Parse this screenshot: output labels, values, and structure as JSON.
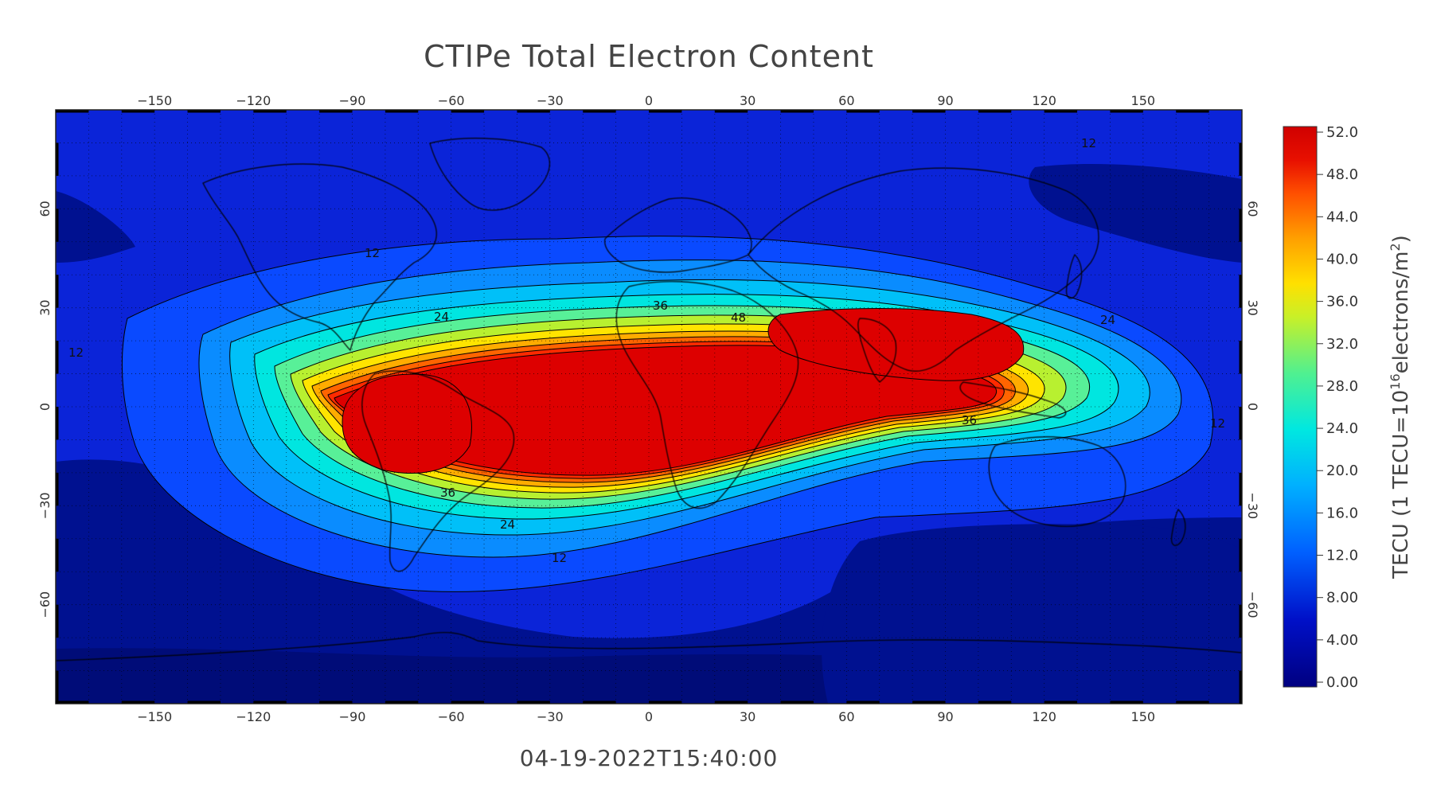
{
  "title": "CTIPe Total Electron Content",
  "timestamp": "04-19-2022T15:40:00",
  "map": {
    "lon_ticks": [
      -150,
      -120,
      -90,
      -60,
      -30,
      0,
      30,
      60,
      90,
      120,
      150
    ],
    "lat_ticks": [
      60,
      30,
      0,
      -30,
      -60
    ],
    "lon_range": [
      -180,
      180
    ],
    "lat_range": [
      -90,
      90
    ],
    "grid": "dotted",
    "contour_labels": [
      "12",
      "24",
      "36",
      "48",
      "36",
      "24",
      "12",
      "12",
      "12",
      "36",
      "24",
      "12"
    ]
  },
  "colorbar": {
    "label": "TECU (1 TECU=10",
    "label_exp": "16",
    "label_mid": "electrons/m",
    "label_exp2": "2",
    "label_end": ")",
    "ticks": [
      "52.0",
      "48.0",
      "44.0",
      "40.0",
      "36.0",
      "32.0",
      "28.0",
      "24.0",
      "20.0",
      "16.0",
      "12.0",
      "8.00",
      "4.00",
      "0.00"
    ],
    "range": [
      0,
      52
    ]
  }
}
